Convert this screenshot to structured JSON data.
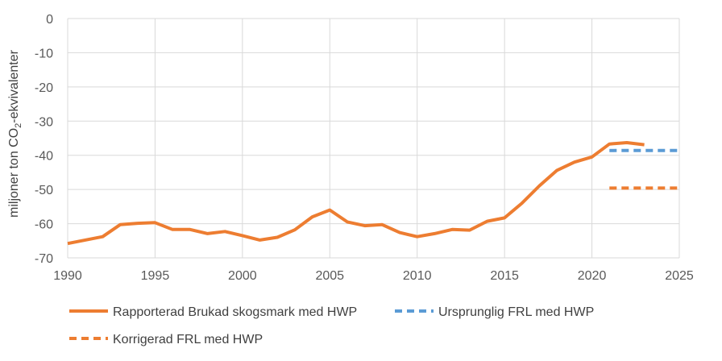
{
  "chart_data": {
    "type": "line",
    "title": "",
    "xlabel": "",
    "ylabel_parts": [
      "miljoner ton CO",
      "2",
      "-ekvivalenter"
    ],
    "xlim": [
      1990,
      2025
    ],
    "ylim": [
      -70,
      0
    ],
    "x_ticks": [
      1990,
      1995,
      2000,
      2005,
      2010,
      2015,
      2020,
      2025
    ],
    "y_ticks": [
      0,
      -10,
      -20,
      -30,
      -40,
      -50,
      -60,
      -70
    ],
    "grid": true,
    "legend_position": "bottom",
    "series": [
      {
        "name": "Rapporterad Brukad skogsmark med HWP",
        "color": "#ED7D31",
        "style": "solid",
        "x": [
          1990,
          1991,
          1992,
          1993,
          1994,
          1995,
          1996,
          1997,
          1998,
          1999,
          2000,
          2001,
          2002,
          2003,
          2004,
          2005,
          2006,
          2007,
          2008,
          2009,
          2010,
          2011,
          2012,
          2013,
          2014,
          2015,
          2016,
          2017,
          2018,
          2019,
          2020,
          2021,
          2022,
          2023
        ],
        "y": [
          -65.8,
          -64.8,
          -63.8,
          -60.3,
          -59.9,
          -59.7,
          -61.7,
          -61.7,
          -62.9,
          -62.3,
          -63.5,
          -64.8,
          -64.0,
          -61.8,
          -58.0,
          -56.0,
          -59.5,
          -60.6,
          -60.3,
          -62.6,
          -63.8,
          -62.9,
          -61.7,
          -61.9,
          -59.3,
          -58.3,
          -54.0,
          -48.9,
          -44.4,
          -42.0,
          -40.5,
          -36.7,
          -36.3,
          -36.9
        ]
      },
      {
        "name": "Ursprunglig FRL med HWP",
        "color": "#5B9BD5",
        "style": "dashed",
        "x": [
          2021,
          2025
        ],
        "y": [
          -38.6,
          -38.6
        ]
      },
      {
        "name": "Korrigerad FRL med HWP",
        "color": "#ED7D31",
        "style": "dashed",
        "x": [
          2021,
          2025
        ],
        "y": [
          -49.6,
          -49.6
        ]
      }
    ]
  }
}
